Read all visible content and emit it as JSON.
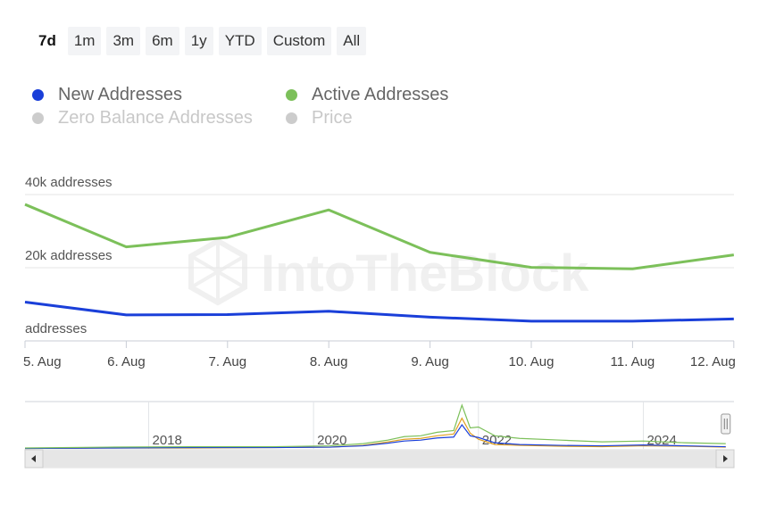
{
  "range_selector": {
    "buttons": [
      {
        "label": "7d",
        "active": true
      },
      {
        "label": "1m",
        "active": false
      },
      {
        "label": "3m",
        "active": false
      },
      {
        "label": "6m",
        "active": false
      },
      {
        "label": "1y",
        "active": false
      },
      {
        "label": "YTD",
        "active": false
      },
      {
        "label": "Custom",
        "active": false
      },
      {
        "label": "All",
        "active": false
      }
    ]
  },
  "legend": {
    "items": [
      {
        "label": "New Addresses",
        "color": "#1a3fd9",
        "enabled": true
      },
      {
        "label": "Active Addresses",
        "color": "#7cc05a",
        "enabled": true
      },
      {
        "label": "Zero Balance Addresses",
        "color": "#cccccc",
        "enabled": false
      },
      {
        "label": "Price",
        "color": "#cccccc",
        "enabled": false
      }
    ]
  },
  "watermark": "IntoTheBlock",
  "chart_data": {
    "type": "line",
    "categories": [
      "5. Aug",
      "6. Aug",
      "7. Aug",
      "8. Aug",
      "9. Aug",
      "10. Aug",
      "11. Aug",
      "12. Aug"
    ],
    "y_axis_labels": [
      "addresses",
      "20k addresses",
      "40k addresses"
    ],
    "y_ticks": [
      0,
      20000,
      40000
    ],
    "ylim": [
      0,
      40000
    ],
    "series": [
      {
        "name": "New Addresses",
        "color": "#1a3fd9",
        "values": [
          10600,
          7100,
          7200,
          8100,
          6500,
          5400,
          5400,
          6000
        ]
      },
      {
        "name": "Active Addresses",
        "color": "#7cc05a",
        "values": [
          37300,
          25700,
          28300,
          35800,
          24200,
          20100,
          19700,
          23500
        ]
      }
    ],
    "grid": true,
    "navigator": {
      "year_labels": [
        "2018",
        "2020",
        "2022",
        "2024"
      ],
      "years": [
        2018,
        2020,
        2022,
        2024
      ],
      "x_range": [
        2016.5,
        2025.1
      ],
      "selection_end": 2025.0,
      "series": [
        {
          "name": "Active Addresses",
          "color": "#7cc05a",
          "x": [
            2016.5,
            2017.5,
            2018.5,
            2019.5,
            2020.2,
            2020.6,
            2020.9,
            2021.1,
            2021.3,
            2021.5,
            2021.7,
            2021.8,
            2021.9,
            2022.0,
            2022.2,
            2022.5,
            2023.0,
            2023.5,
            2024.0,
            2024.5,
            2025.0
          ],
          "y": [
            0.02,
            0.04,
            0.05,
            0.05,
            0.07,
            0.12,
            0.2,
            0.28,
            0.3,
            0.38,
            0.42,
            1.0,
            0.48,
            0.5,
            0.3,
            0.24,
            0.2,
            0.16,
            0.18,
            0.14,
            0.12
          ]
        },
        {
          "name": "New Addresses",
          "color": "#1a3fd9",
          "x": [
            2016.5,
            2017.5,
            2018.5,
            2019.5,
            2020.2,
            2020.6,
            2020.9,
            2021.1,
            2021.3,
            2021.5,
            2021.7,
            2021.8,
            2021.9,
            2022.0,
            2022.2,
            2022.5,
            2023.0,
            2023.5,
            2024.0,
            2024.5,
            2025.0
          ],
          "y": [
            0.01,
            0.02,
            0.03,
            0.03,
            0.04,
            0.07,
            0.13,
            0.18,
            0.2,
            0.25,
            0.27,
            0.55,
            0.3,
            0.26,
            0.14,
            0.1,
            0.08,
            0.07,
            0.09,
            0.07,
            0.05
          ]
        },
        {
          "name": "Price",
          "color": "#e0a020",
          "x": [
            2016.5,
            2017.5,
            2018.5,
            2019.5,
            2020.2,
            2020.6,
            2020.9,
            2021.1,
            2021.3,
            2021.5,
            2021.7,
            2021.8,
            2021.9,
            2022.0,
            2022.2,
            2022.5,
            2023.0,
            2023.5,
            2024.0,
            2024.5,
            2025.0
          ],
          "y": [
            0.01,
            0.02,
            0.02,
            0.03,
            0.04,
            0.08,
            0.16,
            0.22,
            0.24,
            0.3,
            0.34,
            0.7,
            0.36,
            0.22,
            0.1,
            0.08,
            0.06,
            0.05,
            0.07,
            0.06,
            0.04
          ]
        }
      ]
    }
  }
}
